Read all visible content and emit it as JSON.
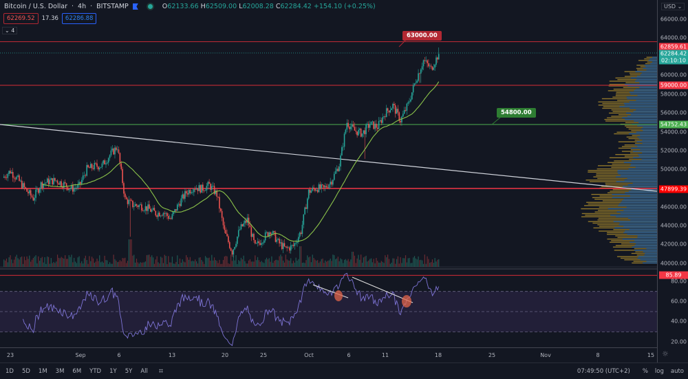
{
  "header": {
    "symbol": "Bitcoin / U.S. Dollar",
    "interval": "4h",
    "exchange": "BITSTAMP",
    "open_label": "O",
    "open": "62133.66",
    "high_label": "H",
    "high": "62509.00",
    "low_label": "L",
    "low": "62008.28",
    "close_label": "C",
    "close": "62284.42",
    "change": "+154.10 (+0.25%)",
    "sell_price": "62269.52",
    "spread": "17.36",
    "buy_price": "62286.88",
    "indicators_toggle": "⌄ 4"
  },
  "price_axis": {
    "currency": "USD ⌄",
    "ticks": [
      "66000.00",
      "64000.00",
      "60000.00",
      "58000.00",
      "56000.00",
      "54000.00",
      "52000.00",
      "50000.00",
      "46000.00",
      "44000.00",
      "42000.00",
      "40000.00"
    ],
    "labels": {
      "level_top": "62859.61",
      "last_price": "62284.42",
      "countdown": "02:10:10",
      "level_59000": "59000.00",
      "level_green": "54752.43",
      "level_47899": "47899.39",
      "rsi_level": "85.89"
    },
    "rsi_ticks": [
      "80.00",
      "60.00",
      "40.00",
      "20.00"
    ]
  },
  "callouts": {
    "resistance": "63000.00",
    "support": "54800.00"
  },
  "time_axis": [
    "23",
    "Sep",
    "6",
    "13",
    "20",
    "25",
    "Oct",
    "6",
    "11",
    "18",
    "25",
    "Nov",
    "8",
    "15"
  ],
  "bottom_bar": {
    "ranges": [
      "1D",
      "5D",
      "1M",
      "3M",
      "6M",
      "YTD",
      "1Y",
      "5Y",
      "All"
    ],
    "clock": "07:49:50 (UTC+2)",
    "percent": "%",
    "log": "log",
    "auto": "auto"
  },
  "colors": {
    "background": "#131722",
    "up": "#26a69a",
    "down": "#ef5350",
    "ma": "#8bc34a",
    "rsi": "#7e74d6",
    "level_red": "#f23645",
    "level_green": "#4caf50",
    "trendline": "#d1d4dc",
    "profile_up": "#2d6aa8",
    "profile_down": "#b8962e"
  },
  "chart_data": {
    "type": "candlestick",
    "interval": "4h",
    "note_values": "approximate daily closes read from chart",
    "dates": [
      "Aug 22",
      "Aug 23",
      "Aug 24",
      "Aug 25",
      "Aug 26",
      "Aug 27",
      "Aug 28",
      "Aug 29",
      "Aug 30",
      "Aug 31",
      "Sep 1",
      "Sep 2",
      "Sep 3",
      "Sep 4",
      "Sep 5",
      "Sep 6",
      "Sep 7",
      "Sep 8",
      "Sep 9",
      "Sep 10",
      "Sep 11",
      "Sep 12",
      "Sep 13",
      "Sep 14",
      "Sep 15",
      "Sep 16",
      "Sep 17",
      "Sep 18",
      "Sep 19",
      "Sep 20",
      "Sep 21",
      "Sep 22",
      "Sep 23",
      "Sep 24",
      "Sep 25",
      "Sep 26",
      "Sep 27",
      "Sep 28",
      "Sep 29",
      "Sep 30",
      "Oct 1",
      "Oct 2",
      "Oct 3",
      "Oct 4",
      "Oct 5",
      "Oct 6",
      "Oct 7",
      "Oct 8",
      "Oct 9",
      "Oct 10",
      "Oct 11",
      "Oct 12",
      "Oct 13",
      "Oct 14",
      "Oct 15",
      "Oct 16",
      "Oct 17",
      "Oct 18"
    ],
    "close": [
      49100,
      49800,
      48900,
      47800,
      46900,
      48400,
      48700,
      48800,
      48400,
      47900,
      48200,
      50000,
      50300,
      50400,
      51500,
      52400,
      46800,
      46200,
      46100,
      45800,
      45300,
      45400,
      44700,
      46300,
      47500,
      48100,
      47900,
      48300,
      47300,
      43300,
      41200,
      43600,
      44600,
      41700,
      42600,
      43500,
      42200,
      41500,
      41800,
      43400,
      47600,
      48000,
      47900,
      48800,
      50500,
      55000,
      54100,
      53800,
      54800,
      54500,
      56000,
      56800,
      55200,
      56900,
      59500,
      61600,
      60700,
      62284.42
    ],
    "horizontal_levels": [
      62859.61,
      59000,
      54752.43,
      47899.39
    ],
    "annotations": [
      "63000.00",
      "54800.00"
    ],
    "ylim": [
      39000,
      67500
    ],
    "price_scale": "linear",
    "rsi": {
      "overbought": 70,
      "middle": 50,
      "oversold": 30,
      "level": 85.89,
      "ylim": [
        10,
        90
      ]
    },
    "indicators": [
      "moving average",
      "volume",
      "volume profile",
      "RSI"
    ]
  }
}
